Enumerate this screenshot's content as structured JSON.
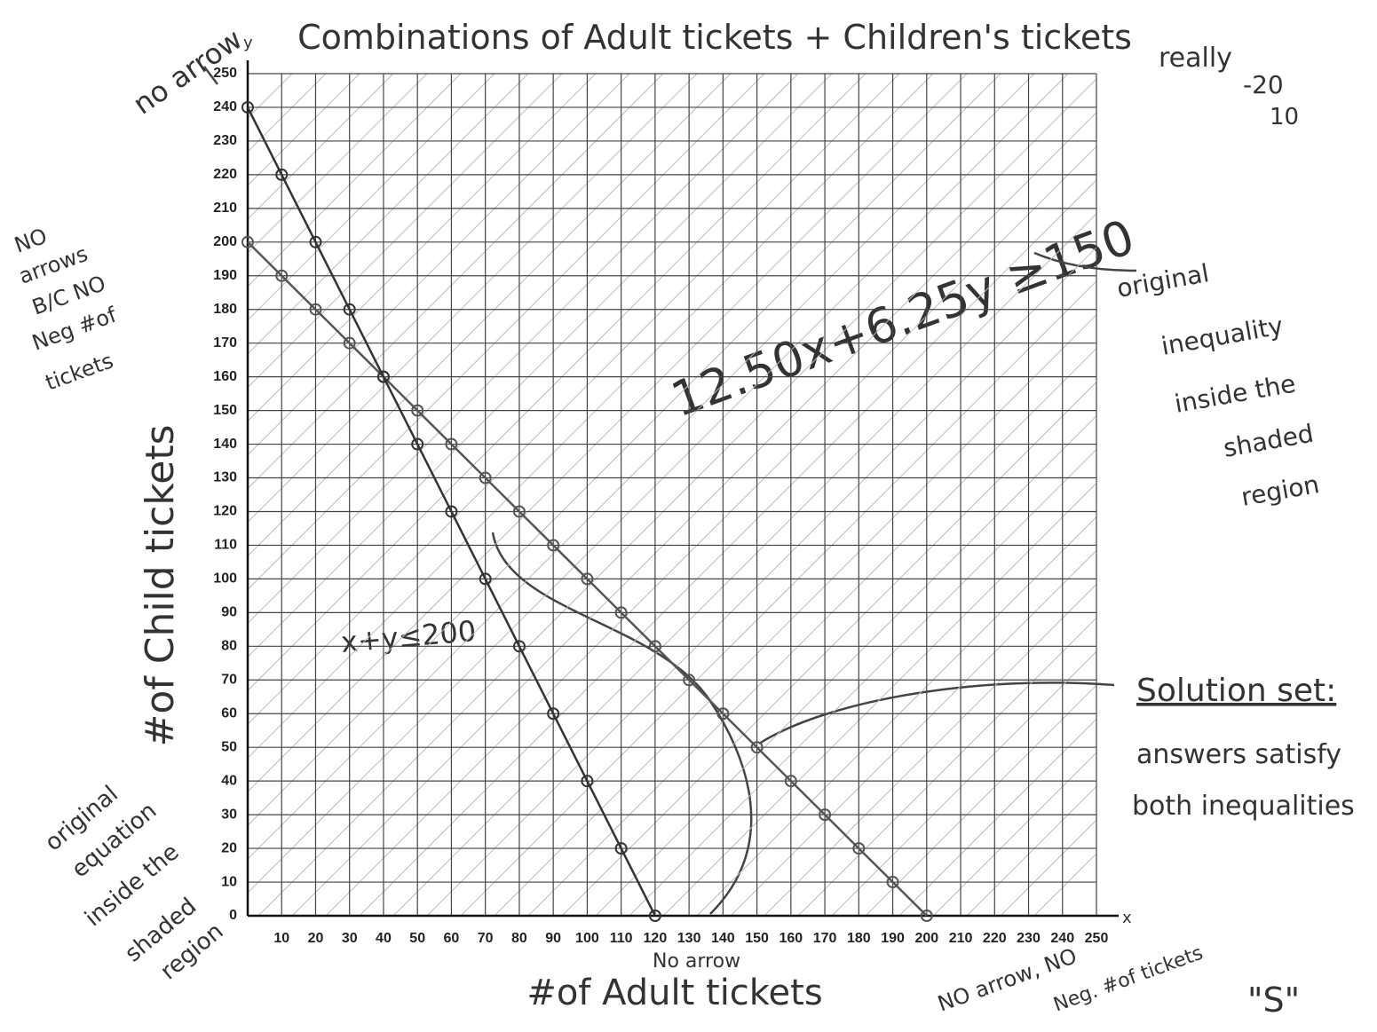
{
  "chart_data": {
    "type": "line",
    "title": "Combinations of Adult tickets + Children's tickets",
    "x_label": "#of Adult tickets",
    "y_label": "#of Child tickets",
    "x_axis_name": "x",
    "y_axis_name": "y",
    "x": [
      0,
      10,
      20,
      30,
      40,
      50,
      60,
      70,
      80,
      90,
      100,
      110,
      120,
      130,
      140,
      150,
      160,
      170,
      180,
      190,
      200
    ],
    "series": [
      {
        "color": "#555555",
        "values": [
          200,
          190,
          180,
          170,
          160,
          150,
          140,
          130,
          120,
          110,
          100,
          90,
          80,
          70,
          60,
          50,
          40,
          30,
          20,
          10,
          0
        ]
      },
      {
        "color": "#333333",
        "values": [
          240,
          220,
          200,
          180,
          160,
          140,
          120,
          100,
          80,
          60,
          40,
          20,
          0,
          null,
          null,
          null,
          null,
          null,
          null,
          null,
          null
        ]
      }
    ],
    "xlim": [
      0,
      250
    ],
    "ylim": [
      0,
      250
    ],
    "xticks": [
      10,
      20,
      30,
      40,
      50,
      60,
      70,
      80,
      90,
      100,
      110,
      120,
      130,
      140,
      150,
      160,
      170,
      180,
      190,
      200,
      210,
      220,
      230,
      240,
      250
    ],
    "yticks": [
      0,
      10,
      20,
      30,
      40,
      50,
      60,
      70,
      80,
      90,
      100,
      110,
      120,
      130,
      140,
      150,
      160,
      170,
      180,
      190,
      200,
      210,
      220,
      230,
      240,
      250
    ],
    "grid": true,
    "annotations": [
      "no arrow",
      "really",
      "-20",
      "10",
      "NO",
      "arrows",
      "B/C NO",
      "Neg #of",
      "tickets",
      "12.50x+6.25y ≥150",
      "original",
      "inequality",
      "inside the",
      "shaded",
      "region",
      "Solution set:",
      "answers satisfy",
      "both inequalities",
      "x+y≤200",
      "original",
      "equation",
      "inside the",
      "shaded",
      "region",
      "No arrow",
      "NO arrow, NO",
      "Neg. #of tickets",
      "\"S\""
    ]
  }
}
